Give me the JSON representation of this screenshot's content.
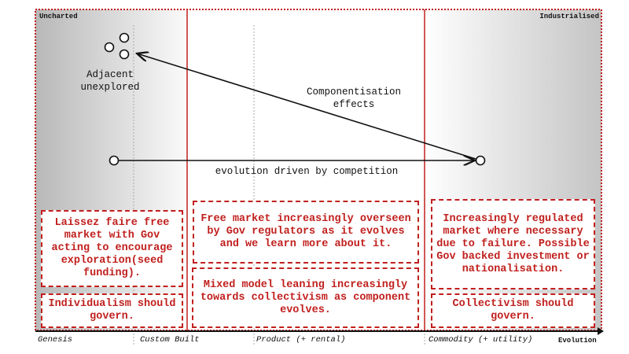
{
  "corners": {
    "left": "Uncharted",
    "right": "Industrialised"
  },
  "labels": {
    "adjacent": "Adjacent unexplored",
    "componentisation": "Componentisation effects",
    "evolution": "evolution driven by competition"
  },
  "boxes": {
    "left_top": "Laissez faire free market with Gov acting to encourage exploration(seed funding).",
    "left_bottom": "Individualism should govern.",
    "middle_top": "Free market increasingly overseen by Gov regulators as it evolves and we learn more about it.",
    "middle_bottom": "Mixed model leaning increasingly towards collectivism as component evolves.",
    "right_top": "Increasingly regulated market where necessary due to failure. Possible Gov backed investment or nationalisation.",
    "right_bottom": "Collectivism should govern."
  },
  "axis": {
    "stages": [
      "Genesis",
      "Custom Built",
      "Product (+ rental)",
      "Commodity (+ utility)"
    ],
    "title": "Evolution"
  },
  "colors": {
    "accent": "#c0201e",
    "ink": "#111111"
  }
}
